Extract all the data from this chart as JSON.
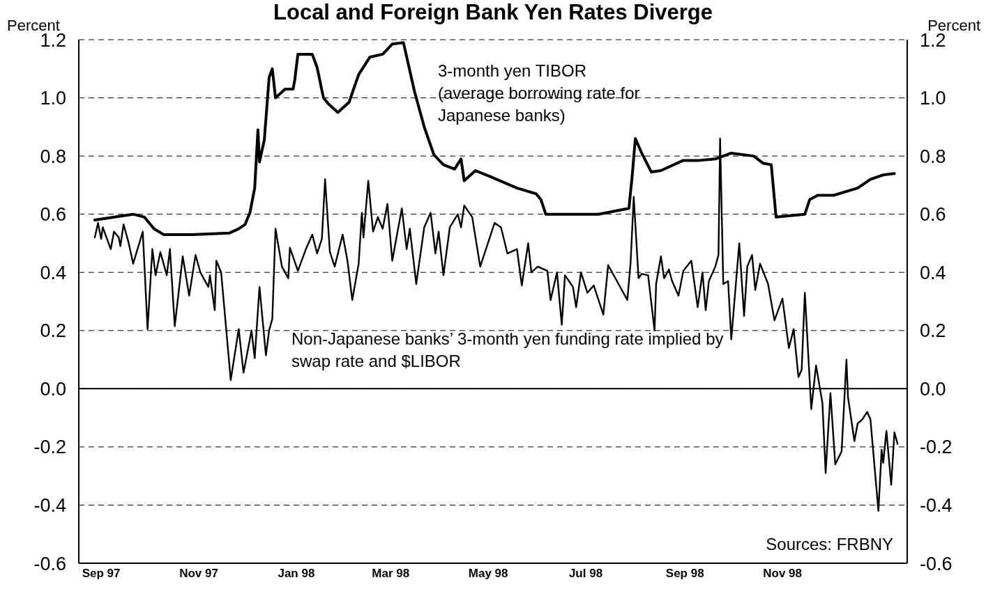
{
  "chart_data": {
    "type": "line",
    "title": "Local and Foreign Bank Yen Rates Diverge",
    "ylabel": "Percent",
    "y2label": "Percent",
    "annotations": [
      "Sources: FRBNY"
    ],
    "xlim": [
      "1997-09-01",
      "1999-02-01"
    ],
    "xticks": [
      {
        "value": "1997-09-15",
        "label": "Sep 97"
      },
      {
        "value": "1997-11-15",
        "label": "Nov 97"
      },
      {
        "value": "1998-01-15",
        "label": "Jan 98"
      },
      {
        "value": "1998-03-15",
        "label": "Mar 98"
      },
      {
        "value": "1998-05-15",
        "label": "May 98"
      },
      {
        "value": "1998-07-15",
        "label": "Jul 98"
      },
      {
        "value": "1998-09-15",
        "label": "Sep 98"
      },
      {
        "value": "1998-11-15",
        "label": "Nov 98"
      }
    ],
    "ylim": [
      -0.6,
      1.2
    ],
    "yticks": [
      -0.6,
      -0.4,
      -0.2,
      {
        "value": 0,
        "label": "0.0"
      },
      0.2,
      0.4,
      0.6,
      0.8,
      {
        "value": 1,
        "label": "1.0"
      },
      1.2
    ],
    "y2lim": [
      -0.6,
      1.2
    ],
    "y2ticks": [
      -0.6,
      -0.4,
      -0.2,
      {
        "value": 0,
        "label": "0.0"
      },
      0.2,
      0.4,
      0.6,
      0.8,
      {
        "value": 1,
        "label": "1.0"
      },
      1.2
    ],
    "grid": "y",
    "legend": false,
    "marker": "none",
    "line_style": "solid",
    "ref_lines": [
      {
        "axis": "y",
        "value": 0,
        "color": "#000000",
        "line_style": "solid"
      }
    ],
    "series": [
      {
        "name": "3-month yen TIBOR (average borrowing rate for Japanese banks)",
        "color": "#000000",
        "x": [
          "1997-09-11",
          "1997-10-05",
          "1997-10-12",
          "1997-10-18",
          "1997-10-24",
          "1997-11-11",
          "1997-12-04",
          "1997-12-10",
          "1997-12-14",
          "1997-12-17",
          "1997-12-20",
          "1997-12-22",
          "1997-12-23",
          "1997-12-26",
          "1997-12-29",
          "1997-12-31",
          "1998-01-02",
          "1998-01-08",
          "1998-01-13",
          "1998-01-14",
          "1998-01-16",
          "1998-01-25",
          "1998-01-28",
          "1998-02-01",
          "1998-02-04",
          "1998-02-10",
          "1998-02-17",
          "1998-02-23",
          "1998-03-02",
          "1998-03-10",
          "1998-03-16",
          "1998-03-23",
          "1998-03-30",
          "1998-04-05",
          "1998-04-11",
          "1998-04-17",
          "1998-04-24",
          "1998-04-28",
          "1998-04-30",
          "1998-05-07",
          "1998-05-16",
          "1998-06-02",
          "1998-06-14",
          "1998-06-17",
          "1998-06-20",
          "1998-07-01",
          "1998-07-23",
          "1998-08-11",
          "1998-08-13",
          "1998-08-15",
          "1998-08-19",
          "1998-08-25",
          "1998-08-31",
          "1998-09-14",
          "1998-09-24",
          "1998-10-04",
          "1998-10-14",
          "1998-10-28",
          "1998-11-03",
          "1998-11-08",
          "1998-11-11",
          "1998-11-29",
          "1998-12-02",
          "1998-12-07",
          "1998-12-17",
          "1999-01-01",
          "1999-01-09",
          "1999-01-17",
          "1999-01-24"
        ],
        "values": [
          0.58,
          0.6,
          0.59,
          0.55,
          0.53,
          0.53,
          0.535,
          0.55,
          0.565,
          0.605,
          0.69,
          0.89,
          0.78,
          0.855,
          1.07,
          1.1,
          1.0,
          1.03,
          1.03,
          1.06,
          1.15,
          1.15,
          1.105,
          1.0,
          0.98,
          0.95,
          0.985,
          1.08,
          1.14,
          1.15,
          1.185,
          1.19,
          1.02,
          0.9,
          0.805,
          0.77,
          0.755,
          0.79,
          0.715,
          0.75,
          0.73,
          0.69,
          0.67,
          0.65,
          0.6,
          0.6,
          0.6,
          0.62,
          0.73,
          0.86,
          0.81,
          0.745,
          0.75,
          0.785,
          0.785,
          0.79,
          0.81,
          0.8,
          0.775,
          0.77,
          0.59,
          0.6,
          0.65,
          0.665,
          0.665,
          0.69,
          0.72,
          0.735,
          0.74
        ]
      },
      {
        "name": "Non-Japanese banks’ 3-month yen funding rate implied by swap rate and $LIBOR",
        "color": "#000000",
        "x": [
          "1997-09-11",
          "1997-09-13",
          "1997-09-15",
          "1997-09-16",
          "1997-09-21",
          "1997-09-23",
          "1997-09-26",
          "1997-09-27",
          "1997-09-29",
          "1997-10-02",
          "1997-10-05",
          "1997-10-11",
          "1997-10-14",
          "1997-10-17",
          "1997-10-19",
          "1997-10-22",
          "1997-10-26",
          "1997-10-28",
          "1997-10-31",
          "1997-11-05",
          "1997-11-09",
          "1997-11-13",
          "1997-11-16",
          "1997-11-21",
          "1997-11-22",
          "1997-11-25",
          "1997-11-26",
          "1997-11-29",
          "1997-12-05",
          "1997-12-10",
          "1997-12-13",
          "1997-12-18",
          "1997-12-20",
          "1997-12-23",
          "1997-12-27",
          "1997-12-29",
          "1997-12-31",
          "1998-01-02",
          "1998-01-06",
          "1998-01-10",
          "1998-01-11",
          "1998-01-16",
          "1998-01-21",
          "1998-01-25",
          "1998-01-28",
          "1998-01-31",
          "1998-02-02",
          "1998-02-05",
          "1998-02-08",
          "1998-02-13",
          "1998-02-16",
          "1998-02-19",
          "1998-02-23",
          "1998-02-25",
          "1998-02-26",
          "1998-03-01",
          "1998-03-04",
          "1998-03-07",
          "1998-03-10",
          "1998-03-13",
          "1998-03-16",
          "1998-03-22",
          "1998-03-25",
          "1998-03-27",
          "1998-03-31",
          "1998-04-05",
          "1998-04-09",
          "1998-04-12",
          "1998-04-14",
          "1998-04-17",
          "1998-04-21",
          "1998-04-26",
          "1998-04-28",
          "1998-04-30",
          "1998-05-05",
          "1998-05-10",
          "1998-05-16",
          "1998-05-19",
          "1998-05-23",
          "1998-05-27",
          "1998-06-02",
          "1998-06-05",
          "1998-06-09",
          "1998-06-11",
          "1998-06-15",
          "1998-06-21",
          "1998-06-23",
          "1998-06-27",
          "1998-06-30",
          "1998-07-02",
          "1998-07-07",
          "1998-07-09",
          "1998-07-12",
          "1998-07-16",
          "1998-07-20",
          "1998-07-26",
          "1998-07-29",
          "1998-08-05",
          "1998-08-10",
          "1998-08-12",
          "1998-08-14",
          "1998-08-17",
          "1998-08-19",
          "1998-08-23",
          "1998-08-27",
          "1998-08-28",
          "1998-08-31",
          "1998-09-02",
          "1998-09-05",
          "1998-09-07",
          "1998-09-11",
          "1998-09-14",
          "1998-09-19",
          "1998-09-23",
          "1998-09-26",
          "1998-09-28",
          "1998-09-30",
          "1998-10-04",
          "1998-10-06",
          "1998-10-07",
          "1998-10-09",
          "1998-10-12",
          "1998-10-14",
          "1998-10-17",
          "1998-10-19",
          "1998-10-22",
          "1998-10-24",
          "1998-10-27",
          "1998-10-29",
          "1998-11-01",
          "1998-11-06",
          "1998-11-10",
          "1998-11-13",
          "1998-11-15",
          "1998-11-19",
          "1998-11-22",
          "1998-11-25",
          "1998-11-27",
          "1998-11-29",
          "1998-12-03",
          "1998-12-06",
          "1998-12-10",
          "1998-12-12",
          "1998-12-15",
          "1998-12-18",
          "1998-12-22",
          "1998-12-25",
          "1998-12-26",
          "1998-12-30",
          "1999-01-01",
          "1999-01-04",
          "1999-01-07",
          "1999-01-09",
          "1999-01-14",
          "1999-01-16",
          "1999-01-17",
          "1999-01-19",
          "1999-01-22",
          "1999-01-24",
          "1999-01-26"
        ],
        "values": [
          0.52,
          0.57,
          0.515,
          0.555,
          0.48,
          0.54,
          0.52,
          0.49,
          0.565,
          0.505,
          0.43,
          0.54,
          0.205,
          0.48,
          0.39,
          0.47,
          0.39,
          0.48,
          0.215,
          0.455,
          0.32,
          0.46,
          0.4,
          0.35,
          0.39,
          0.27,
          0.44,
          0.4,
          0.03,
          0.205,
          0.055,
          0.2,
          0.105,
          0.35,
          0.115,
          0.2,
          0.24,
          0.55,
          0.42,
          0.38,
          0.485,
          0.405,
          0.48,
          0.53,
          0.465,
          0.515,
          0.72,
          0.47,
          0.42,
          0.53,
          0.44,
          0.305,
          0.43,
          0.605,
          0.52,
          0.715,
          0.54,
          0.59,
          0.55,
          0.635,
          0.44,
          0.62,
          0.48,
          0.55,
          0.36,
          0.555,
          0.605,
          0.465,
          0.54,
          0.39,
          0.555,
          0.6,
          0.555,
          0.63,
          0.59,
          0.42,
          0.52,
          0.57,
          0.555,
          0.465,
          0.48,
          0.355,
          0.5,
          0.4,
          0.42,
          0.405,
          0.305,
          0.4,
          0.22,
          0.39,
          0.35,
          0.28,
          0.4,
          0.33,
          0.355,
          0.255,
          0.425,
          0.355,
          0.305,
          0.43,
          0.66,
          0.38,
          0.395,
          0.39,
          0.2,
          0.36,
          0.455,
          0.38,
          0.41,
          0.37,
          0.32,
          0.405,
          0.44,
          0.28,
          0.4,
          0.27,
          0.37,
          0.42,
          0.46,
          0.86,
          0.36,
          0.37,
          0.17,
          0.37,
          0.5,
          0.25,
          0.42,
          0.46,
          0.34,
          0.43,
          0.36,
          0.235,
          0.28,
          0.31,
          0.14,
          0.205,
          0.04,
          0.065,
          0.33,
          -0.07,
          0.08,
          -0.05,
          -0.29,
          -0.015,
          -0.26,
          -0.215,
          0.1,
          -0.03,
          -0.18,
          -0.12,
          -0.105,
          -0.08,
          -0.105,
          -0.42,
          -0.21,
          -0.255,
          -0.145,
          -0.33,
          -0.15,
          -0.19
        ]
      }
    ]
  }
}
